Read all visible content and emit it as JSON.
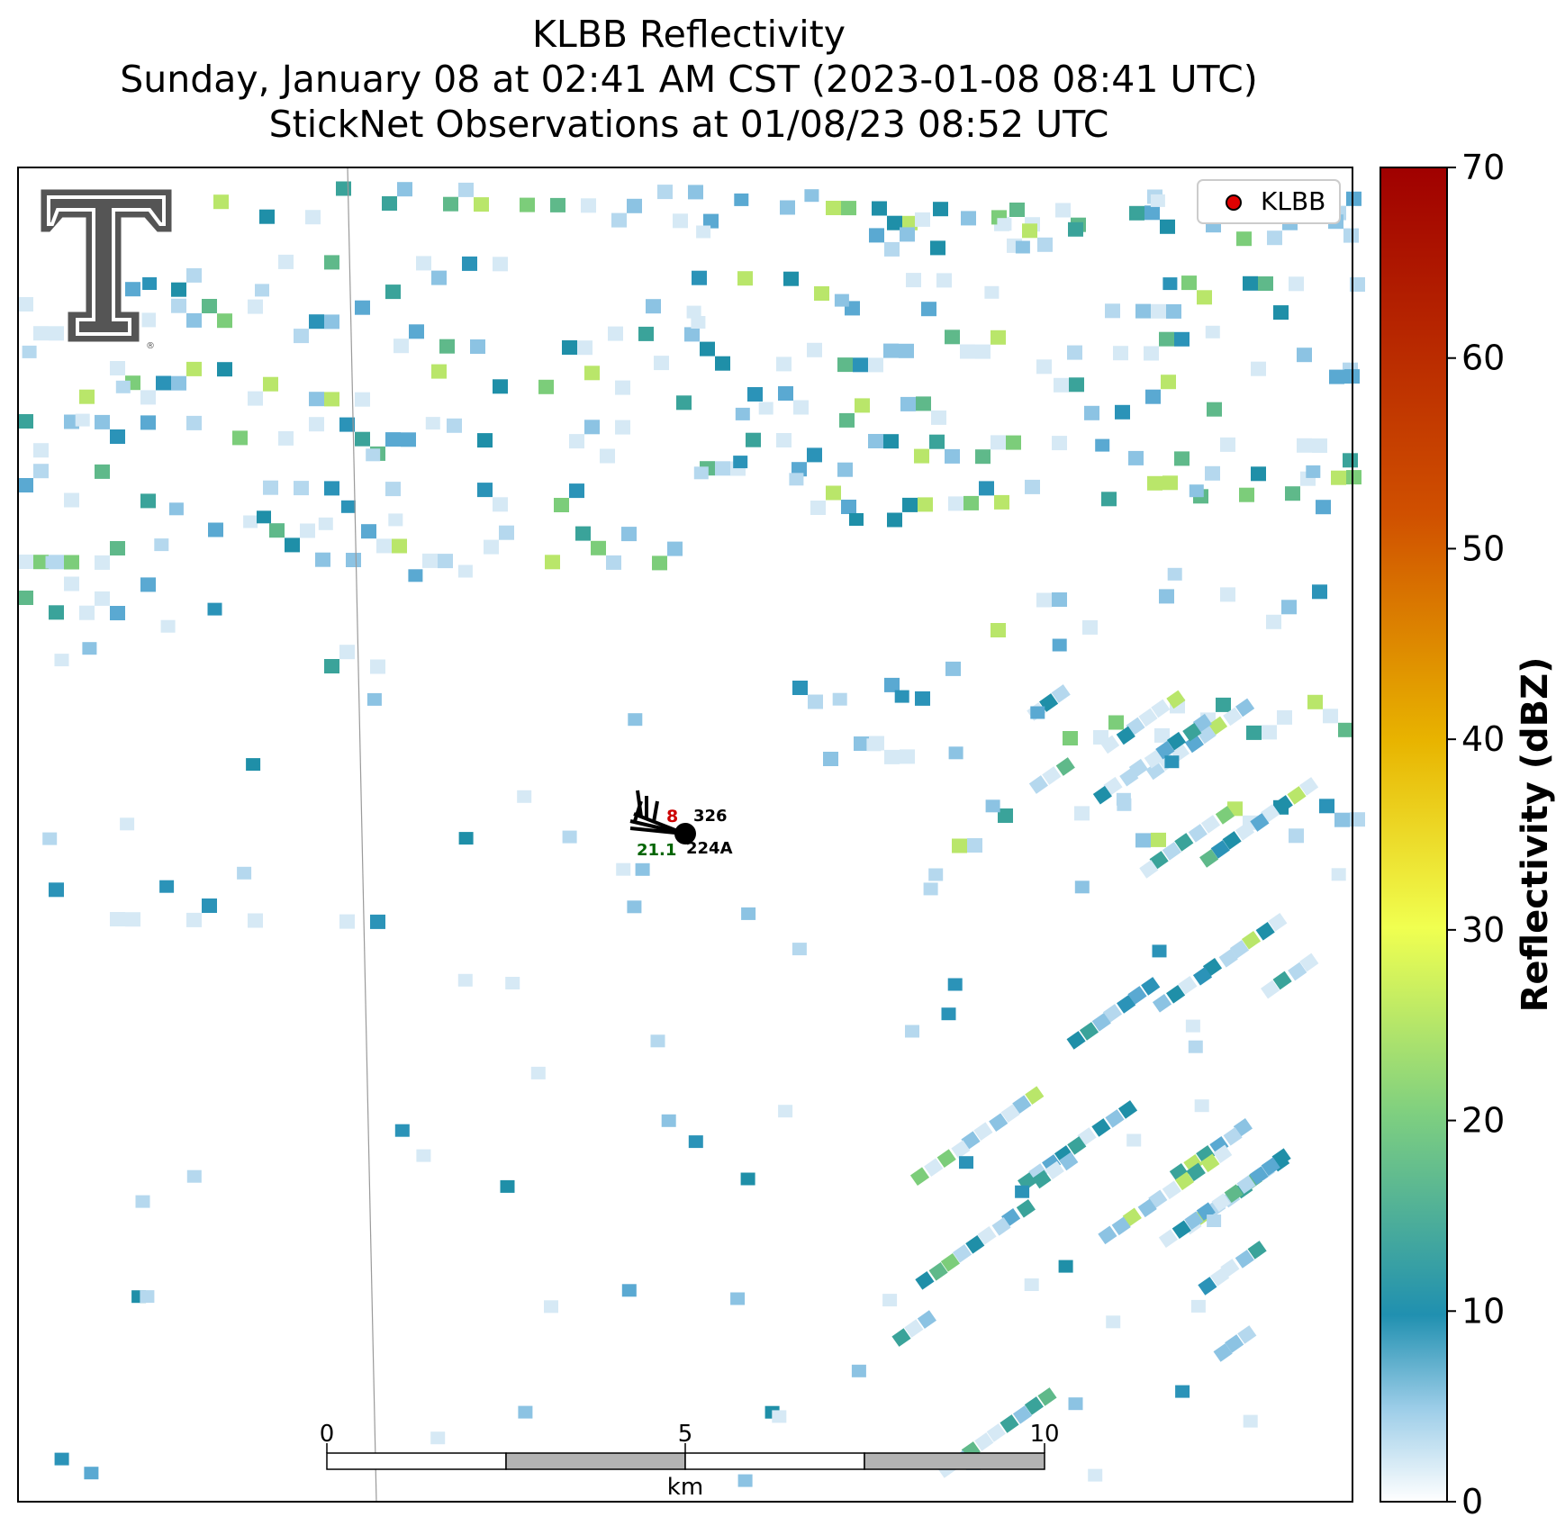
{
  "title": {
    "line1": "KLBB Reflectivity",
    "line2": "Sunday, January 08 at 02:41 AM CST (2023-01-08 08:41 UTC)",
    "line3": "StickNet Observations at 01/08/23 08:52 UTC"
  },
  "legend": {
    "marker_color": "#e00000",
    "label": "KLBB"
  },
  "colorbar": {
    "label": "Reflectivity (dBZ)",
    "min": 0,
    "max": 70,
    "ticks": [
      "0",
      "10",
      "20",
      "30",
      "40",
      "50",
      "60",
      "70"
    ],
    "colors": [
      "#ffffff",
      "#9ccde8",
      "#2090b0",
      "#7ecf80",
      "#f0ff50",
      "#e8b400",
      "#d05000",
      "#a00000"
    ]
  },
  "scalebar": {
    "unit": "km",
    "ticks": [
      "0",
      "5",
      "10"
    ]
  },
  "stations": [
    {
      "id": "326",
      "value": "8",
      "value_color": "#cc0000"
    },
    {
      "id": "224A",
      "value": "21.1",
      "value_color": "#006400"
    }
  ],
  "logo": {
    "name": "texas-tech-double-t-logo",
    "mark": "®"
  }
}
